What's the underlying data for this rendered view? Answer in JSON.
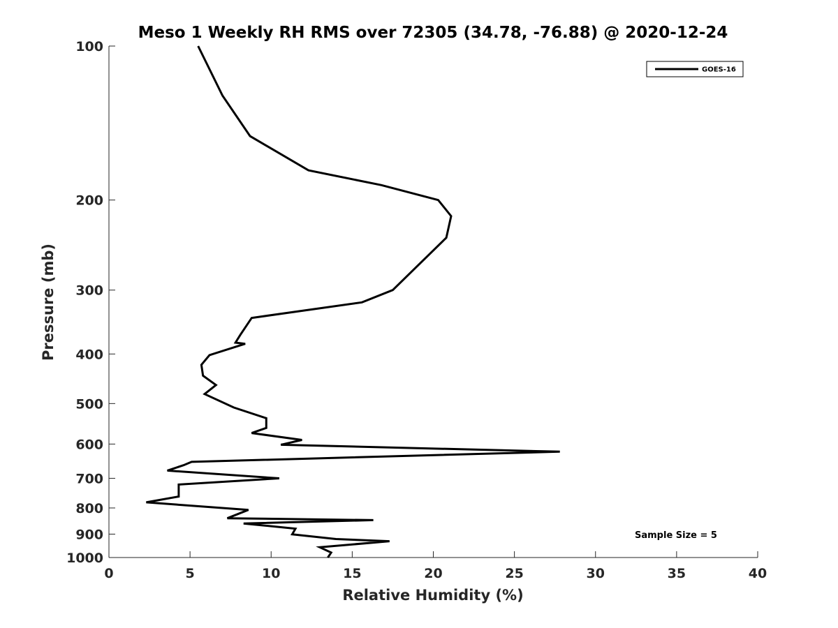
{
  "chart_data": {
    "type": "line",
    "title": "Meso 1 Weekly RH RMS over 72305 (34.78, -76.88) @ 2020-12-24",
    "xlabel": "Relative Humidity (%)",
    "ylabel": "Pressure (mb)",
    "xlim": [
      0,
      40
    ],
    "ylim": [
      100,
      1000
    ],
    "y_scale": "log",
    "y_reversed": true,
    "x_ticks": [
      0,
      5,
      10,
      15,
      20,
      25,
      30,
      35,
      40
    ],
    "y_ticks": [
      100,
      200,
      300,
      400,
      500,
      600,
      700,
      800,
      900,
      1000
    ],
    "grid": false,
    "legend_position": "top-right",
    "annotation": "Sample Size = 5",
    "series": [
      {
        "name": "GOES-16",
        "color": "#000000",
        "points": [
          [
            5.5,
            100
          ],
          [
            7.0,
            125
          ],
          [
            8.7,
            150
          ],
          [
            12.3,
            175
          ],
          [
            16.8,
            187
          ],
          [
            20.3,
            200
          ],
          [
            21.1,
            215
          ],
          [
            20.8,
            237
          ],
          [
            17.5,
            300
          ],
          [
            15.6,
            317
          ],
          [
            8.8,
            340
          ],
          [
            8.1,
            367
          ],
          [
            7.8,
            380
          ],
          [
            8.4,
            382
          ],
          [
            6.2,
            402
          ],
          [
            5.7,
            420
          ],
          [
            5.8,
            441
          ],
          [
            6.6,
            460
          ],
          [
            5.9,
            479
          ],
          [
            7.7,
            509
          ],
          [
            9.7,
            534
          ],
          [
            9.7,
            558
          ],
          [
            8.8,
            571
          ],
          [
            11.9,
            589
          ],
          [
            10.6,
            602
          ],
          [
            27.8,
            621
          ],
          [
            5.1,
            650
          ],
          [
            4.6,
            660
          ],
          [
            3.6,
            676
          ],
          [
            10.5,
            700
          ],
          [
            4.3,
            720
          ],
          [
            4.3,
            760
          ],
          [
            2.3,
            780
          ],
          [
            8.6,
            807
          ],
          [
            7.3,
            838
          ],
          [
            16.3,
            845
          ],
          [
            8.3,
            858
          ],
          [
            11.5,
            878
          ],
          [
            11.3,
            901
          ],
          [
            14.0,
            920
          ],
          [
            17.3,
            929
          ],
          [
            13.0,
            955
          ],
          [
            13.7,
            978
          ],
          [
            13.5,
            1000
          ]
        ]
      }
    ]
  }
}
